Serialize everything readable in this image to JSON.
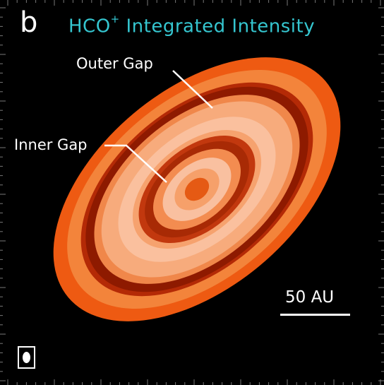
{
  "panel": {
    "letter": "b",
    "title_main": "HCO",
    "title_sup": "+",
    "title_rest": " Integrated Intensity"
  },
  "annotations": {
    "outer_gap": "Outer Gap",
    "inner_gap": "Inner Gap"
  },
  "scale_bar": {
    "label": "50 AU"
  },
  "colors": {
    "background": "#000000",
    "title": "#35c6d0",
    "text": "#ffffff",
    "disk_edge": "#f05a10",
    "disk_bright": "#f9b690",
    "gap_dark": "#8e1a00"
  },
  "beam": {
    "shape": "ellipse"
  }
}
